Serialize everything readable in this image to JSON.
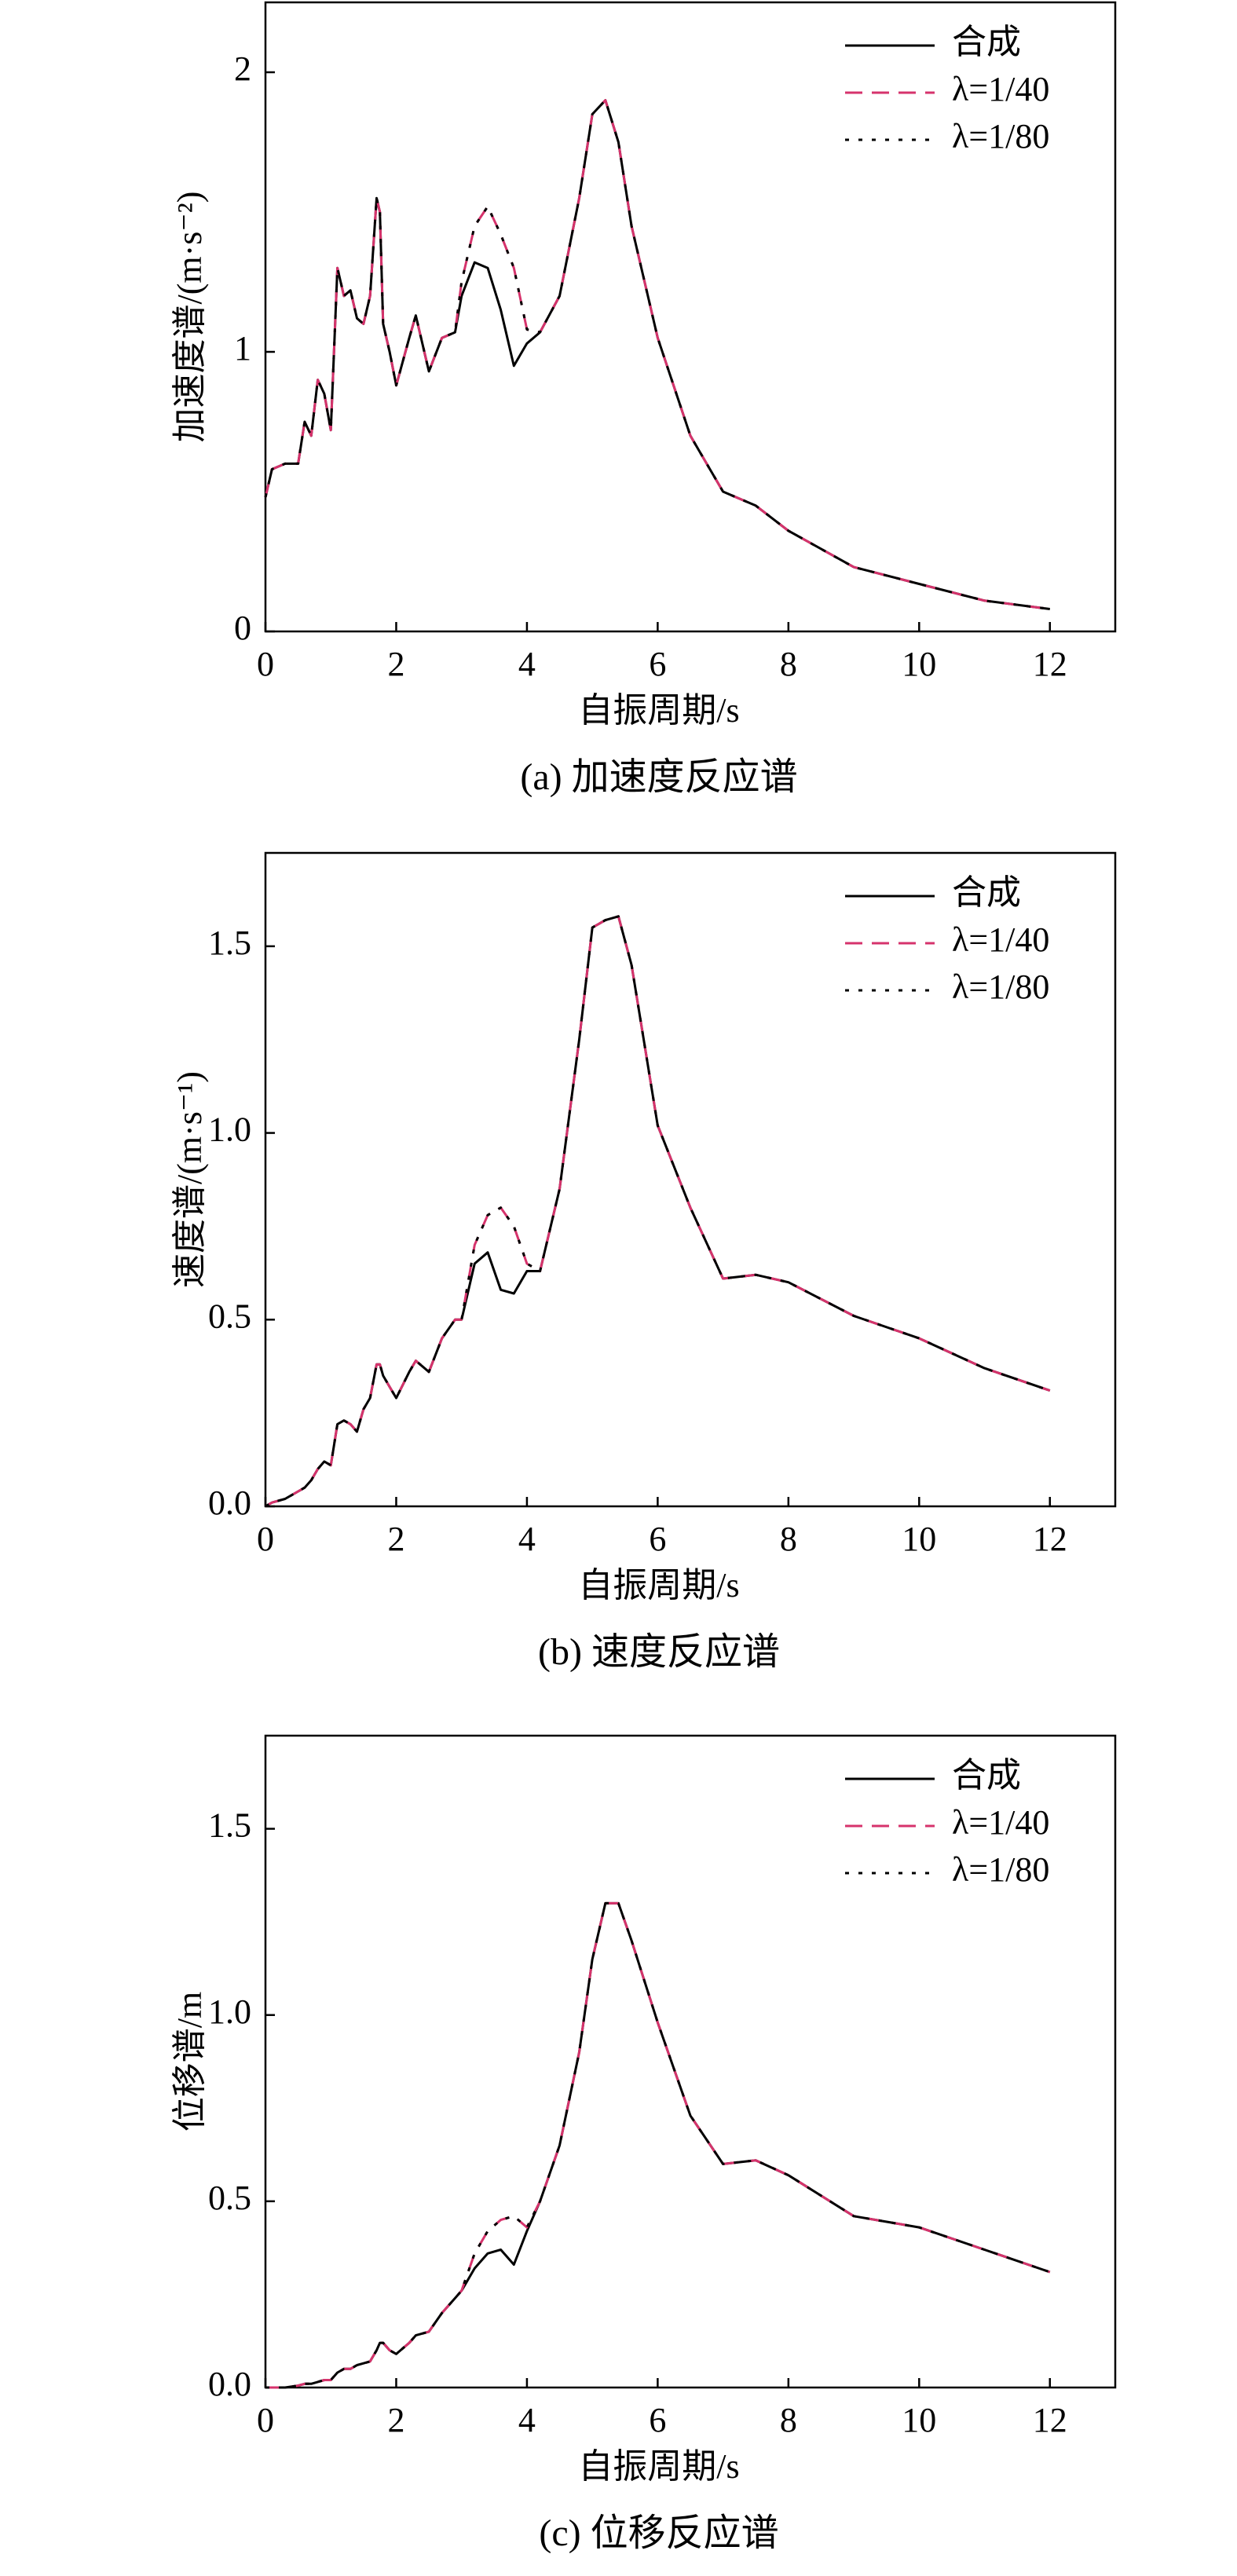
{
  "chart_data": [
    {
      "type": "line",
      "title": "(a) 加速度反应谱",
      "x_label": "自振周期/s",
      "y_label": "加速度谱/(m·s⁻²)",
      "x": [
        0,
        0.1,
        0.3,
        0.5,
        0.6,
        0.7,
        0.8,
        0.9,
        1.0,
        1.1,
        1.2,
        1.3,
        1.4,
        1.5,
        1.6,
        1.7,
        1.75,
        1.8,
        1.9,
        2.0,
        2.2,
        2.3,
        2.5,
        2.7,
        2.9,
        3.0,
        3.2,
        3.4,
        3.6,
        3.8,
        4.0,
        4.2,
        4.5,
        4.8,
        5.0,
        5.2,
        5.4,
        5.6,
        6.0,
        6.5,
        7.0,
        7.5,
        8.0,
        9.0,
        10.0,
        11.0,
        12.0
      ],
      "series": [
        {
          "name": "合成",
          "color": "#000000",
          "dash": "solid",
          "values": [
            0.48,
            0.58,
            0.6,
            0.6,
            0.75,
            0.7,
            0.9,
            0.85,
            0.72,
            1.3,
            1.2,
            1.22,
            1.12,
            1.1,
            1.2,
            1.55,
            1.5,
            1.1,
            1.0,
            0.88,
            1.05,
            1.13,
            0.93,
            1.05,
            1.07,
            1.2,
            1.32,
            1.3,
            1.15,
            0.95,
            1.03,
            1.07,
            1.2,
            1.55,
            1.85,
            1.9,
            1.75,
            1.45,
            1.05,
            0.7,
            0.5,
            0.45,
            0.36,
            0.23,
            0.17,
            0.11,
            0.08
          ]
        },
        {
          "name": "λ=1/40",
          "color": "#d6336c",
          "dash": "dashed",
          "values": [
            0.48,
            0.58,
            0.6,
            0.6,
            0.75,
            0.7,
            0.9,
            0.85,
            0.72,
            1.3,
            1.2,
            1.22,
            1.12,
            1.1,
            1.2,
            1.55,
            1.5,
            1.1,
            1.0,
            0.88,
            1.05,
            1.13,
            0.93,
            1.05,
            1.07,
            1.25,
            1.45,
            1.52,
            1.42,
            1.3,
            1.08,
            1.07,
            1.2,
            1.55,
            1.85,
            1.9,
            1.75,
            1.45,
            1.05,
            0.7,
            0.5,
            0.45,
            0.36,
            0.23,
            0.17,
            0.11,
            0.08
          ]
        },
        {
          "name": "λ=1/80",
          "color": "#000000",
          "dash": "dotted",
          "values": [
            0.48,
            0.58,
            0.6,
            0.6,
            0.75,
            0.7,
            0.9,
            0.85,
            0.72,
            1.3,
            1.2,
            1.22,
            1.12,
            1.1,
            1.2,
            1.55,
            1.5,
            1.1,
            1.0,
            0.88,
            1.05,
            1.13,
            0.93,
            1.05,
            1.07,
            1.25,
            1.45,
            1.52,
            1.42,
            1.3,
            1.08,
            1.07,
            1.2,
            1.55,
            1.85,
            1.9,
            1.75,
            1.45,
            1.05,
            0.7,
            0.5,
            0.45,
            0.36,
            0.23,
            0.17,
            0.11,
            0.08
          ]
        }
      ],
      "xlim": [
        0,
        13
      ],
      "xticks": [
        0,
        2,
        4,
        6,
        8,
        10,
        12
      ],
      "ylim": [
        0,
        2.25
      ],
      "yticks": [
        0,
        1,
        2
      ]
    },
    {
      "type": "line",
      "title": "(b) 速度反应谱",
      "x_label": "自振周期/s",
      "y_label": "速度谱/(m·s⁻¹)",
      "x": [
        0,
        0.1,
        0.3,
        0.5,
        0.6,
        0.7,
        0.8,
        0.9,
        1.0,
        1.1,
        1.2,
        1.3,
        1.4,
        1.5,
        1.6,
        1.7,
        1.75,
        1.8,
        1.9,
        2.0,
        2.2,
        2.3,
        2.5,
        2.7,
        2.9,
        3.0,
        3.2,
        3.4,
        3.6,
        3.8,
        4.0,
        4.2,
        4.5,
        4.8,
        5.0,
        5.2,
        5.4,
        5.6,
        6.0,
        6.5,
        7.0,
        7.5,
        8.0,
        9.0,
        10.0,
        11.0,
        12.0
      ],
      "series": [
        {
          "name": "合成",
          "color": "#000000",
          "dash": "solid",
          "values": [
            0,
            0.01,
            0.02,
            0.04,
            0.05,
            0.07,
            0.1,
            0.12,
            0.11,
            0.22,
            0.23,
            0.22,
            0.2,
            0.26,
            0.29,
            0.38,
            0.38,
            0.35,
            0.32,
            0.29,
            0.36,
            0.39,
            0.36,
            0.45,
            0.5,
            0.5,
            0.65,
            0.68,
            0.58,
            0.57,
            0.63,
            0.63,
            0.85,
            1.25,
            1.55,
            1.57,
            1.58,
            1.45,
            1.02,
            0.8,
            0.61,
            0.62,
            0.6,
            0.51,
            0.45,
            0.37,
            0.31
          ]
        },
        {
          "name": "λ=1/40",
          "color": "#d6336c",
          "dash": "dashed",
          "values": [
            0,
            0.01,
            0.02,
            0.04,
            0.05,
            0.07,
            0.1,
            0.12,
            0.11,
            0.22,
            0.23,
            0.22,
            0.2,
            0.26,
            0.29,
            0.38,
            0.38,
            0.35,
            0.32,
            0.29,
            0.36,
            0.39,
            0.36,
            0.45,
            0.5,
            0.5,
            0.7,
            0.78,
            0.8,
            0.75,
            0.65,
            0.63,
            0.85,
            1.25,
            1.55,
            1.57,
            1.58,
            1.45,
            1.02,
            0.8,
            0.61,
            0.62,
            0.6,
            0.51,
            0.45,
            0.37,
            0.31
          ]
        },
        {
          "name": "λ=1/80",
          "color": "#000000",
          "dash": "dotted",
          "values": [
            0,
            0.01,
            0.02,
            0.04,
            0.05,
            0.07,
            0.1,
            0.12,
            0.11,
            0.22,
            0.23,
            0.22,
            0.2,
            0.26,
            0.29,
            0.38,
            0.38,
            0.35,
            0.32,
            0.29,
            0.36,
            0.39,
            0.36,
            0.45,
            0.5,
            0.5,
            0.7,
            0.78,
            0.8,
            0.75,
            0.65,
            0.63,
            0.85,
            1.25,
            1.55,
            1.57,
            1.58,
            1.45,
            1.02,
            0.8,
            0.61,
            0.62,
            0.6,
            0.51,
            0.45,
            0.37,
            0.31
          ]
        }
      ],
      "xlim": [
        0,
        13
      ],
      "xticks": [
        0,
        2,
        4,
        6,
        8,
        10,
        12
      ],
      "ylim": [
        0,
        1.75
      ],
      "yticks": [
        {
          "value": 0,
          "label": "0.0"
        },
        0.5,
        {
          "value": 1,
          "label": "1.0"
        },
        1.5
      ]
    },
    {
      "type": "line",
      "title": "(c) 位移反应谱",
      "x_label": "自振周期/s",
      "y_label": "位移谱/m",
      "x": [
        0,
        0.1,
        0.3,
        0.5,
        0.6,
        0.7,
        0.8,
        0.9,
        1.0,
        1.1,
        1.2,
        1.3,
        1.4,
        1.5,
        1.6,
        1.7,
        1.75,
        1.8,
        1.9,
        2.0,
        2.2,
        2.3,
        2.5,
        2.7,
        2.9,
        3.0,
        3.2,
        3.4,
        3.6,
        3.8,
        4.0,
        4.2,
        4.5,
        4.8,
        5.0,
        5.2,
        5.4,
        5.6,
        6.0,
        6.5,
        7.0,
        7.5,
        8.0,
        9.0,
        10.0,
        11.0,
        12.0
      ],
      "series": [
        {
          "name": "合成",
          "color": "#000000",
          "dash": "solid",
          "values": [
            0,
            0,
            0,
            0.005,
            0.01,
            0.01,
            0.015,
            0.02,
            0.02,
            0.04,
            0.05,
            0.05,
            0.06,
            0.065,
            0.07,
            0.1,
            0.12,
            0.12,
            0.1,
            0.09,
            0.12,
            0.14,
            0.15,
            0.2,
            0.24,
            0.26,
            0.32,
            0.36,
            0.37,
            0.33,
            0.42,
            0.5,
            0.65,
            0.9,
            1.15,
            1.3,
            1.3,
            1.2,
            0.98,
            0.73,
            0.6,
            0.61,
            0.57,
            0.46,
            0.43,
            0.37,
            0.31
          ]
        },
        {
          "name": "λ=1/40",
          "color": "#d6336c",
          "dash": "dashed",
          "values": [
            0,
            0,
            0,
            0.005,
            0.01,
            0.01,
            0.015,
            0.02,
            0.02,
            0.04,
            0.05,
            0.05,
            0.06,
            0.065,
            0.07,
            0.1,
            0.12,
            0.12,
            0.1,
            0.09,
            0.12,
            0.14,
            0.15,
            0.2,
            0.24,
            0.26,
            0.36,
            0.42,
            0.45,
            0.46,
            0.43,
            0.5,
            0.65,
            0.9,
            1.15,
            1.3,
            1.3,
            1.2,
            0.98,
            0.73,
            0.6,
            0.61,
            0.57,
            0.46,
            0.43,
            0.37,
            0.31
          ]
        },
        {
          "name": "λ=1/80",
          "color": "#000000",
          "dash": "dotted",
          "values": [
            0,
            0,
            0,
            0.005,
            0.01,
            0.01,
            0.015,
            0.02,
            0.02,
            0.04,
            0.05,
            0.05,
            0.06,
            0.065,
            0.07,
            0.1,
            0.12,
            0.12,
            0.1,
            0.09,
            0.12,
            0.14,
            0.15,
            0.2,
            0.24,
            0.26,
            0.36,
            0.42,
            0.45,
            0.46,
            0.43,
            0.5,
            0.65,
            0.9,
            1.15,
            1.3,
            1.3,
            1.2,
            0.98,
            0.73,
            0.6,
            0.61,
            0.57,
            0.46,
            0.43,
            0.37,
            0.31
          ]
        }
      ],
      "xlim": [
        0,
        13
      ],
      "xticks": [
        0,
        2,
        4,
        6,
        8,
        10,
        12
      ],
      "ylim": [
        0,
        1.75
      ],
      "yticks": [
        {
          "value": 0,
          "label": "0.0"
        },
        0.5,
        {
          "value": 1,
          "label": "1.0"
        },
        1.5
      ]
    }
  ]
}
